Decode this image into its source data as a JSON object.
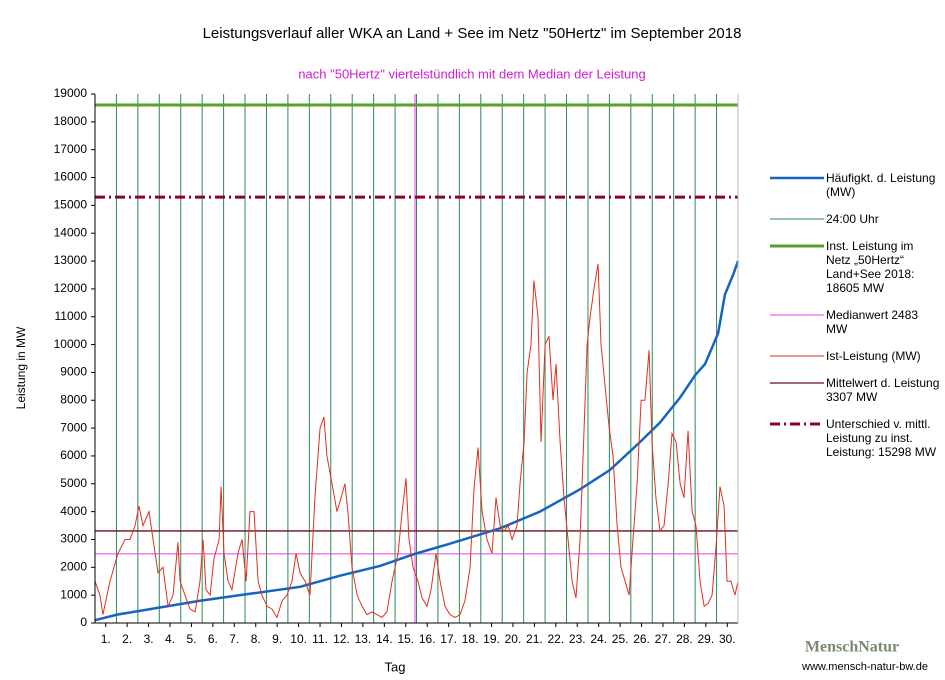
{
  "chart_data": {
    "type": "line",
    "title": "Leistungsverlauf aller WKA an Land + See im Netz \"50Hertz\" im September 2018",
    "subtitle": "nach \"50Hertz\" viertelstündlich mit dem Median der Leistung",
    "y_label": "Leistung in MW",
    "x_label": "Tag",
    "xlim": [
      0,
      30
    ],
    "ylim": [
      0,
      19000
    ],
    "yticks": [
      0,
      1000,
      2000,
      3000,
      4000,
      5000,
      6000,
      7000,
      8000,
      9000,
      10000,
      11000,
      12000,
      13000,
      14000,
      15000,
      16000,
      17000,
      18000,
      19000
    ],
    "xticks": [
      {
        "value": 0.5,
        "label": "1."
      },
      {
        "value": 1.5,
        "label": "2."
      },
      {
        "value": 2.5,
        "label": "3."
      },
      {
        "value": 3.5,
        "label": "4."
      },
      {
        "value": 4.5,
        "label": "5."
      },
      {
        "value": 5.5,
        "label": "6."
      },
      {
        "value": 6.5,
        "label": "7."
      },
      {
        "value": 7.5,
        "label": "8."
      },
      {
        "value": 8.5,
        "label": "9."
      },
      {
        "value": 9.5,
        "label": "10."
      },
      {
        "value": 10.5,
        "label": "11."
      },
      {
        "value": 11.5,
        "label": "12."
      },
      {
        "value": 12.5,
        "label": "13."
      },
      {
        "value": 13.5,
        "label": "14."
      },
      {
        "value": 14.5,
        "label": "15."
      },
      {
        "value": 15.5,
        "label": "16."
      },
      {
        "value": 16.5,
        "label": "17."
      },
      {
        "value": 17.5,
        "label": "18."
      },
      {
        "value": 18.5,
        "label": "19."
      },
      {
        "value": 19.5,
        "label": "20."
      },
      {
        "value": 20.5,
        "label": "21."
      },
      {
        "value": 21.5,
        "label": "22."
      },
      {
        "value": 22.5,
        "label": "23."
      },
      {
        "value": 23.5,
        "label": "24."
      },
      {
        "value": 24.5,
        "label": "25."
      },
      {
        "value": 25.5,
        "label": "26."
      },
      {
        "value": 26.5,
        "label": "27."
      },
      {
        "value": 27.5,
        "label": "28."
      },
      {
        "value": 28.5,
        "label": "29."
      },
      {
        "value": 29.5,
        "label": "30."
      }
    ],
    "series": [
      {
        "name": "Häufigkt. d. Leistung (MW)",
        "color": "#1565c0",
        "width": 2.5,
        "x": [
          0,
          1.03,
          2.57,
          4.9,
          7.23,
          9.57,
          11.43,
          13.3,
          14.93,
          16.56,
          18.9,
          20.76,
          22.63,
          24.03,
          25.43,
          26.36,
          27.3,
          28.0,
          28.46,
          29.07,
          29.39,
          29.77,
          30
        ],
        "values": [
          100,
          300,
          500,
          800,
          1050,
          1300,
          1700,
          2050,
          2483,
          2850,
          3400,
          4000,
          4800,
          5500,
          6500,
          7200,
          8100,
          8900,
          9300,
          10400,
          11800,
          12500,
          13000
        ]
      },
      {
        "name": "24:00 Uhr",
        "color": "#2e8b57",
        "width": 1,
        "x": [
          1,
          2,
          3,
          4,
          5,
          6,
          7,
          8,
          9,
          10,
          11,
          12,
          13,
          14,
          15,
          16,
          17,
          18,
          19,
          20,
          21,
          22,
          23,
          24,
          25,
          26,
          27,
          28,
          29
        ]
      },
      {
        "name": "Inst. Leistung im Netz „50Hertz“ Land+See 2018: 18605 MW",
        "color": "#5aa02c",
        "width": 3,
        "value": 18605
      },
      {
        "name": "Medianwert 2483 MW",
        "color": "#e040e0",
        "width": 1,
        "value": 2483,
        "x": [
          14.93
        ]
      },
      {
        "name": "Ist-Leistung (MW)",
        "color": "#e0301e",
        "width": 1,
        "x": [
          0,
          0.23,
          0.37,
          0.7,
          1.07,
          1.4,
          1.63,
          1.87,
          2.05,
          2.24,
          2.52,
          2.71,
          2.94,
          3.17,
          3.41,
          3.64,
          3.87,
          3.97,
          4.2,
          4.43,
          4.67,
          4.9,
          5.04,
          5.18,
          5.37,
          5.55,
          5.79,
          5.88,
          6.02,
          6.21,
          6.39,
          6.67,
          6.86,
          7.05,
          7.23,
          7.42,
          7.61,
          7.79,
          8.03,
          8.26,
          8.49,
          8.73,
          8.96,
          9.19,
          9.38,
          9.57,
          9.8,
          10.03,
          10.26,
          10.5,
          10.68,
          10.82,
          11.06,
          11.29,
          11.48,
          11.66,
          11.8,
          11.99,
          12.23,
          12.46,
          12.69,
          12.92,
          13.16,
          13.39,
          13.62,
          13.86,
          14.14,
          14.33,
          14.51,
          14.65,
          14.84,
          15.07,
          15.26,
          15.49,
          15.68,
          15.91,
          16.1,
          16.33,
          16.56,
          16.8,
          17.03,
          17.26,
          17.5,
          17.68,
          17.87,
          18.06,
          18.29,
          18.52,
          18.71,
          18.9,
          19.08,
          19.27,
          19.46,
          19.69,
          19.83,
          20.02,
          20.16,
          20.34,
          20.48,
          20.67,
          20.81,
          21.0,
          21.18,
          21.37,
          21.51,
          21.7,
          21.88,
          22.07,
          22.26,
          22.44,
          22.63,
          22.82,
          22.96,
          23.1,
          23.28,
          23.47,
          23.61,
          23.8,
          23.99,
          24.17,
          24.36,
          24.54,
          24.73,
          24.92,
          25.1,
          25.29,
          25.48,
          25.66,
          25.85,
          25.99,
          26.17,
          26.36,
          26.55,
          26.74,
          26.92,
          27.11,
          27.3,
          27.48,
          27.67,
          27.86,
          28.04,
          28.23,
          28.42,
          28.6,
          28.79,
          28.98,
          29.16,
          29.35,
          29.49,
          29.67,
          29.86,
          30
        ],
        "values": [
          1500,
          1000,
          300,
          1500,
          2500,
          3000,
          3000,
          3500,
          4200,
          3500,
          4000,
          3000,
          1800,
          2000,
          600,
          1000,
          2900,
          1500,
          1000,
          500,
          400,
          1500,
          3000,
          1200,
          1000,
          2300,
          3000,
          4900,
          2500,
          1500,
          1200,
          2500,
          3000,
          1500,
          4000,
          4000,
          1500,
          1000,
          600,
          500,
          200,
          800,
          1000,
          1500,
          2500,
          1800,
          1500,
          1000,
          4500,
          7000,
          7400,
          6000,
          5000,
          4000,
          4500,
          5000,
          4000,
          2000,
          1000,
          600,
          300,
          400,
          300,
          200,
          400,
          1500,
          2500,
          4000,
          5200,
          3000,
          2000,
          1500,
          900,
          600,
          1200,
          2500,
          1500,
          600,
          300,
          200,
          300,
          800,
          2000,
          4800,
          6300,
          4000,
          3000,
          2500,
          4500,
          3500,
          3300,
          3500,
          3000,
          3500,
          5000,
          6500,
          9000,
          10000,
          12300,
          11000,
          6500,
          10000,
          10300,
          8000,
          9300,
          6500,
          4500,
          3000,
          1500,
          900,
          3000,
          7000,
          10000,
          11000,
          12000,
          12900,
          10000,
          8500,
          7000,
          6000,
          3500,
          2000,
          1500,
          1000,
          3000,
          5000,
          8000,
          8000,
          9800,
          6500,
          4500,
          3300,
          3500,
          5000,
          6800,
          6500,
          5000,
          4500,
          6900,
          4000,
          3500,
          1500,
          600,
          700,
          1000,
          2800,
          4900,
          4200,
          1500,
          1500,
          1000,
          1500
        ]
      },
      {
        "name": "Mittelwert d. Leistung 3307 MW",
        "color": "#6b0f1a",
        "width": 1.3,
        "value": 3307
      },
      {
        "name": "Unterschied v. mittl. Leistung zu inst. Leistung: 15298 MW",
        "color": "#8b0030",
        "width": 3,
        "dash": "dashdot",
        "value": 15298
      }
    ],
    "logo": {
      "name": "MenschNatur",
      "url": "www.mensch-natur-bw.de"
    }
  }
}
